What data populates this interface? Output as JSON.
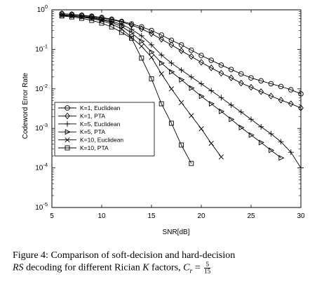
{
  "chart_data": {
    "type": "line",
    "title": "",
    "xlabel": "SNR[dB]",
    "ylabel": "Codeword Error Rate",
    "xlim": [
      5,
      30
    ],
    "ylim": [
      1e-05,
      1
    ],
    "yscale": "log",
    "xticks": [
      "5",
      "10",
      "15",
      "20",
      "25",
      "30"
    ],
    "yticks": [
      {
        "base": "10",
        "exp": "0",
        "value": 1
      },
      {
        "base": "10",
        "exp": "-1",
        "value": 0.1
      },
      {
        "base": "10",
        "exp": "-2",
        "value": 0.01
      },
      {
        "base": "10",
        "exp": "-3",
        "value": 0.001
      },
      {
        "base": "10",
        "exp": "-4",
        "value": 0.0001
      },
      {
        "base": "10",
        "exp": "-5",
        "value": 1e-05
      }
    ],
    "grid": false,
    "legend_position": "bottom-left",
    "series": [
      {
        "name": "K=1, Euclidean",
        "marker": "circle",
        "x": [
          6,
          7,
          8,
          9,
          10,
          11,
          12,
          13,
          14,
          15,
          16,
          17,
          18,
          19,
          20,
          21,
          22,
          23,
          24,
          25,
          26,
          27,
          28,
          29,
          30
        ],
        "y": [
          0.8,
          0.77,
          0.73,
          0.69,
          0.64,
          0.58,
          0.51,
          0.44,
          0.37,
          0.3,
          0.23,
          0.17,
          0.13,
          0.095,
          0.07,
          0.053,
          0.04,
          0.031,
          0.024,
          0.019,
          0.016,
          0.0135,
          0.0115,
          0.0095,
          0.0075
        ]
      },
      {
        "name": "K=1, PTA",
        "marker": "diamond",
        "x": [
          6,
          7,
          8,
          9,
          10,
          11,
          12,
          13,
          14,
          15,
          16,
          17,
          18,
          19,
          20,
          21,
          22,
          23,
          24,
          25,
          26,
          27,
          28,
          29,
          30
        ],
        "y": [
          0.8,
          0.76,
          0.72,
          0.67,
          0.62,
          0.56,
          0.49,
          0.41,
          0.33,
          0.25,
          0.18,
          0.13,
          0.092,
          0.066,
          0.047,
          0.034,
          0.025,
          0.019,
          0.014,
          0.011,
          0.0085,
          0.0066,
          0.0052,
          0.0042,
          0.0033
        ]
      },
      {
        "name": "K=5, Euclidean",
        "marker": "plus",
        "x": [
          6,
          7,
          8,
          9,
          10,
          11,
          12,
          13,
          14,
          15,
          16,
          17,
          18,
          19,
          20,
          21,
          22,
          23,
          24,
          25,
          26,
          27,
          28,
          29,
          30
        ],
        "y": [
          0.75,
          0.72,
          0.68,
          0.64,
          0.58,
          0.51,
          0.43,
          0.32,
          0.22,
          0.13,
          0.072,
          0.045,
          0.03,
          0.02,
          0.0135,
          0.009,
          0.006,
          0.0039,
          0.0026,
          0.0017,
          0.0011,
          0.00073,
          0.00046,
          0.00025,
          0.0001
        ]
      },
      {
        "name": "K=5, PTA",
        "marker": "triangle-right",
        "x": [
          6,
          7,
          8,
          9,
          10,
          11,
          12,
          13,
          14,
          15,
          16,
          17,
          18,
          19,
          20,
          21,
          22,
          23,
          24,
          25,
          26,
          27,
          28
        ],
        "y": [
          0.75,
          0.71,
          0.67,
          0.62,
          0.56,
          0.48,
          0.38,
          0.26,
          0.16,
          0.085,
          0.045,
          0.027,
          0.017,
          0.0105,
          0.0065,
          0.0042,
          0.0027,
          0.0017,
          0.00105,
          0.00068,
          0.00044,
          0.00028,
          0.00018
        ]
      },
      {
        "name": "K=10, Euclidean",
        "marker": "x",
        "x": [
          6,
          7,
          8,
          9,
          10,
          11,
          12,
          13,
          14,
          15,
          16,
          17,
          18,
          19,
          20,
          21,
          22
        ],
        "y": [
          0.72,
          0.69,
          0.65,
          0.6,
          0.53,
          0.44,
          0.33,
          0.2,
          0.12,
          0.063,
          0.024,
          0.01,
          0.0045,
          0.0021,
          0.00098,
          0.00042,
          0.00019
        ]
      },
      {
        "name": "K=10, PTA",
        "marker": "square",
        "x": [
          6,
          7,
          8,
          9,
          10,
          11,
          12,
          13,
          14,
          15,
          16,
          17,
          18,
          19
        ],
        "y": [
          0.7,
          0.66,
          0.61,
          0.54,
          0.46,
          0.37,
          0.27,
          0.19,
          0.06,
          0.018,
          0.0042,
          0.00135,
          0.00038,
          0.00013
        ]
      }
    ]
  },
  "caption": {
    "prefix": "Figure 4:  Comparison of soft-decision and hard-decision",
    "rs": "RS",
    "middle": " decoding for different Rician ",
    "k": "K",
    "after_k": " factors, ",
    "cr": "C",
    "cr_sub": "r",
    "equals": " = ",
    "numerator": "5",
    "denominator": "15"
  }
}
